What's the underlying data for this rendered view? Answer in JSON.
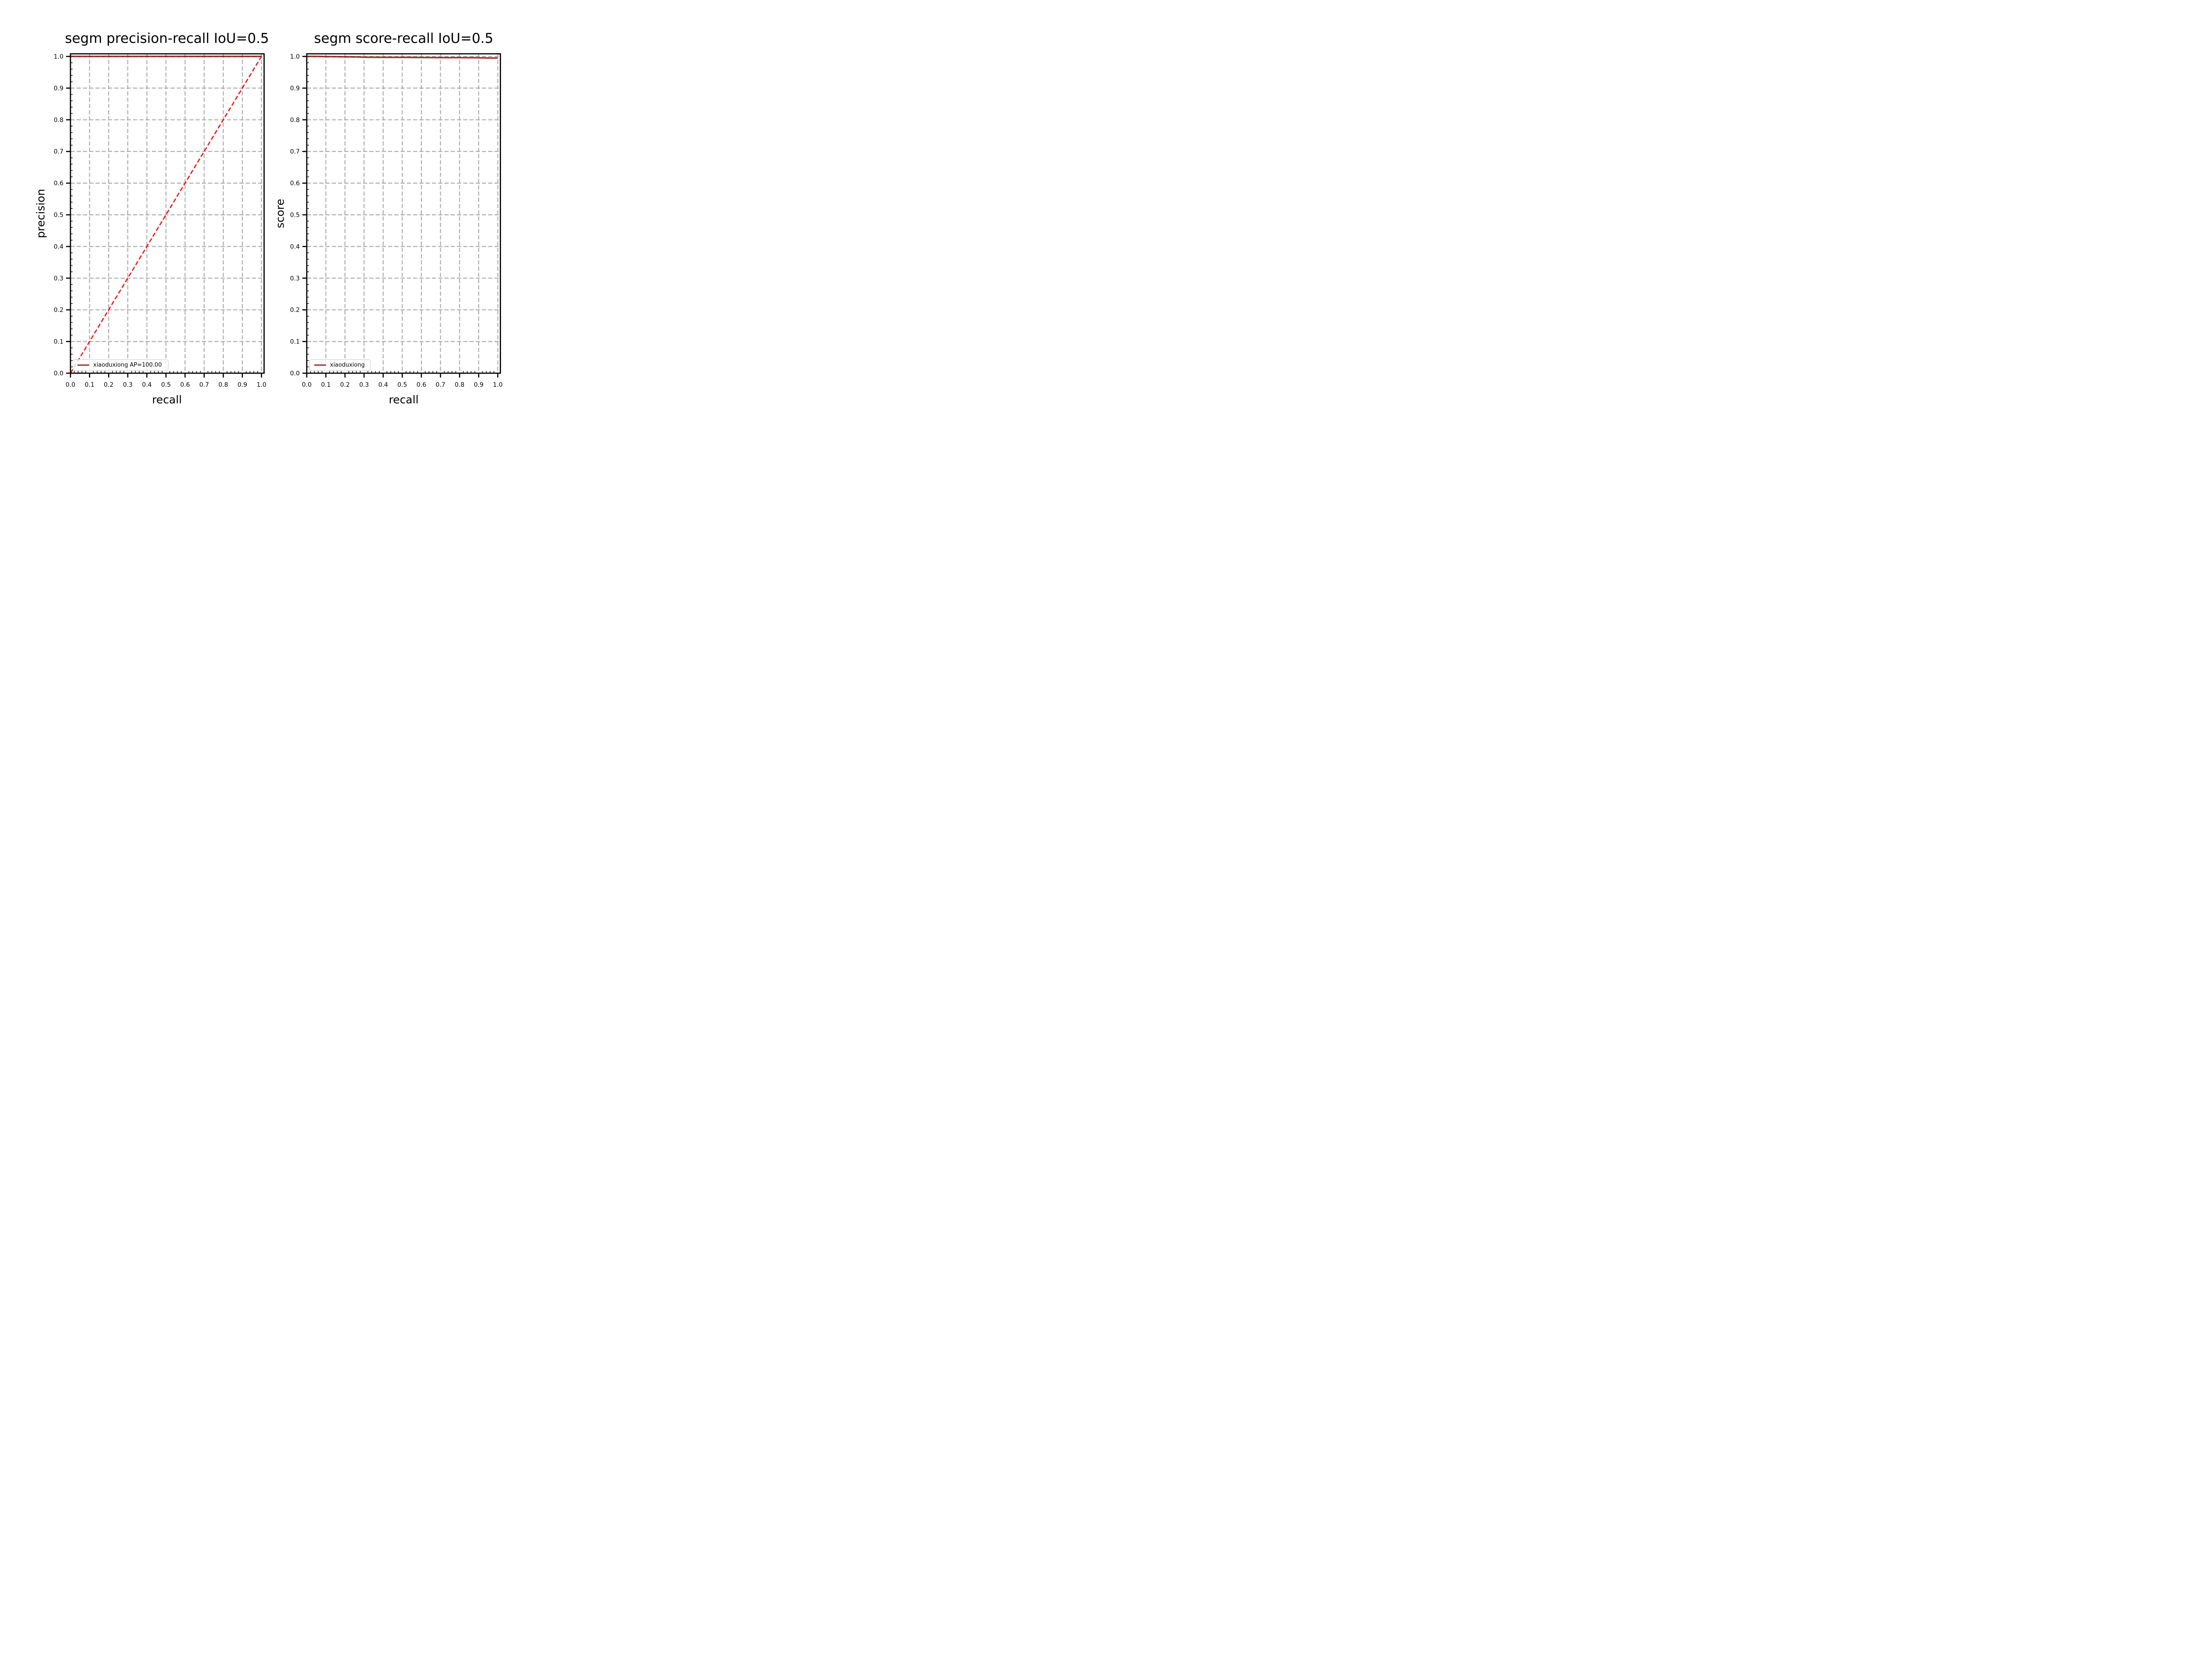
{
  "figure": {
    "background": "#ffffff",
    "spine_color": "#000000",
    "text_color": "#000000"
  },
  "chart_data": {
    "type": "line",
    "note": "two side-by-side line plots sharing identical axes ranges and tick labels"
  },
  "charts": [
    {
      "id": "precision-recall",
      "title": "segm precision-recall IoU=0.5",
      "xlabel": "recall",
      "ylabel": "precision",
      "xlim": [
        0.0,
        1.0
      ],
      "ylim": [
        0.0,
        1.0
      ],
      "xtick_labels": [
        "0.0",
        "0.1",
        "0.2",
        "0.3",
        "0.4",
        "0.5",
        "0.6",
        "0.7",
        "0.8",
        "0.9",
        "1.0"
      ],
      "ytick_labels": [
        "0.0",
        "0.1",
        "0.2",
        "0.3",
        "0.4",
        "0.5",
        "0.6",
        "0.7",
        "0.8",
        "0.9",
        "1.0"
      ],
      "grid": {
        "show": true,
        "color": "#ababab",
        "style": "dashed"
      },
      "legend": {
        "position": "lower left",
        "entries": [
          {
            "label": "xiaoduxiong AP=100.00",
            "color": "#8b0000"
          }
        ]
      },
      "series": [
        {
          "name": "xiaoduxiong",
          "color": "#8b0000",
          "opacity": 0.8,
          "dash": "solid",
          "width": 3.5,
          "points": [
            [
              0.0,
              1.0
            ],
            [
              1.0,
              1.0
            ]
          ]
        },
        {
          "name": "reference-diagonal",
          "color": "#ff0000",
          "opacity": 1.0,
          "dash": "dashed",
          "width": 2.6,
          "points": [
            [
              0.0,
              0.0
            ],
            [
              1.0,
              1.0
            ]
          ]
        }
      ]
    },
    {
      "id": "score-recall",
      "title": "segm score-recall IoU=0.5",
      "xlabel": "recall",
      "ylabel": "score",
      "xlim": [
        0.0,
        1.0
      ],
      "ylim": [
        0.0,
        1.0
      ],
      "xtick_labels": [
        "0.0",
        "0.1",
        "0.2",
        "0.3",
        "0.4",
        "0.5",
        "0.6",
        "0.7",
        "0.8",
        "0.9",
        "1.0"
      ],
      "ytick_labels": [
        "0.0",
        "0.1",
        "0.2",
        "0.3",
        "0.4",
        "0.5",
        "0.6",
        "0.7",
        "0.8",
        "0.9",
        "1.0"
      ],
      "grid": {
        "show": true,
        "color": "#ababab",
        "style": "dashed"
      },
      "legend": {
        "position": "lower left",
        "entries": [
          {
            "label": "xiaoduxiong",
            "color": "#8b0000"
          }
        ]
      },
      "series": [
        {
          "name": "xiaoduxiong",
          "color": "#8b0000",
          "opacity": 0.8,
          "dash": "solid",
          "width": 3.5,
          "points": [
            [
              0.0,
              1.0
            ],
            [
              0.05,
              1.0
            ],
            [
              0.1,
              0.9995
            ],
            [
              0.18,
              0.999
            ],
            [
              0.26,
              0.9985
            ],
            [
              0.3,
              0.9975
            ],
            [
              0.38,
              0.9972
            ],
            [
              0.5,
              0.997
            ],
            [
              0.62,
              0.9966
            ],
            [
              0.75,
              0.9962
            ],
            [
              0.88,
              0.996
            ],
            [
              0.92,
              0.9955
            ],
            [
              0.96,
              0.995
            ],
            [
              1.0,
              0.995
            ]
          ]
        }
      ]
    }
  ]
}
